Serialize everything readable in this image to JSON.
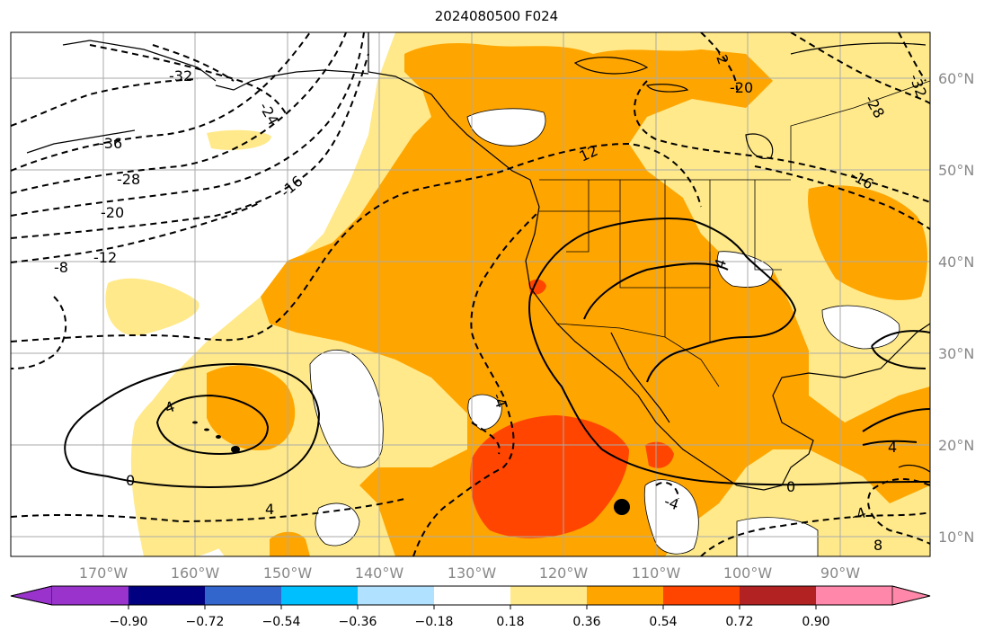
{
  "title": "2024080500 F024",
  "map": {
    "lon_labels": [
      "170°W",
      "160°W",
      "150°W",
      "140°W",
      "130°W",
      "120°W",
      "110°W",
      "100°W",
      "90°W"
    ],
    "lat_labels": [
      "60°N",
      "50°N",
      "40°N",
      "30°N",
      "20°N",
      "10°N"
    ],
    "lon_values": [
      -170,
      -160,
      -150,
      -140,
      -130,
      -120,
      -110,
      -100,
      -90
    ],
    "lat_values": [
      60,
      50,
      40,
      30,
      20,
      10
    ],
    "extent": {
      "lon_min": -179,
      "lon_max": -79.5,
      "lat_min": 8,
      "lat_max": 65
    },
    "grid": true,
    "contour_labels": [
      "-32",
      "-24",
      "-36",
      "-28",
      "-20",
      "-16",
      "-12",
      "-8",
      "-12",
      "-4",
      "4",
      "0",
      "4",
      "-4",
      "4",
      "-4",
      "0",
      "4",
      "-20",
      "-28",
      "-32",
      "-16",
      "12",
      "-4",
      "-4",
      "-4",
      "8",
      "-2"
    ],
    "marker": {
      "type": "dot",
      "lon": -113.5,
      "lat": 13.5
    }
  },
  "colorbar": {
    "ticks": [
      "−0.90",
      "−0.72",
      "−0.54",
      "−0.36",
      "−0.18",
      "0.18",
      "0.36",
      "0.54",
      "0.72",
      "0.90"
    ],
    "colors": [
      "#9933cc",
      "#000080",
      "#3366cc",
      "#00bfff",
      "#b0e2ff",
      "#ffffff",
      "#ffe98a",
      "#ffa500",
      "#ff4500",
      "#b22222",
      "#ff88aa"
    ]
  }
}
